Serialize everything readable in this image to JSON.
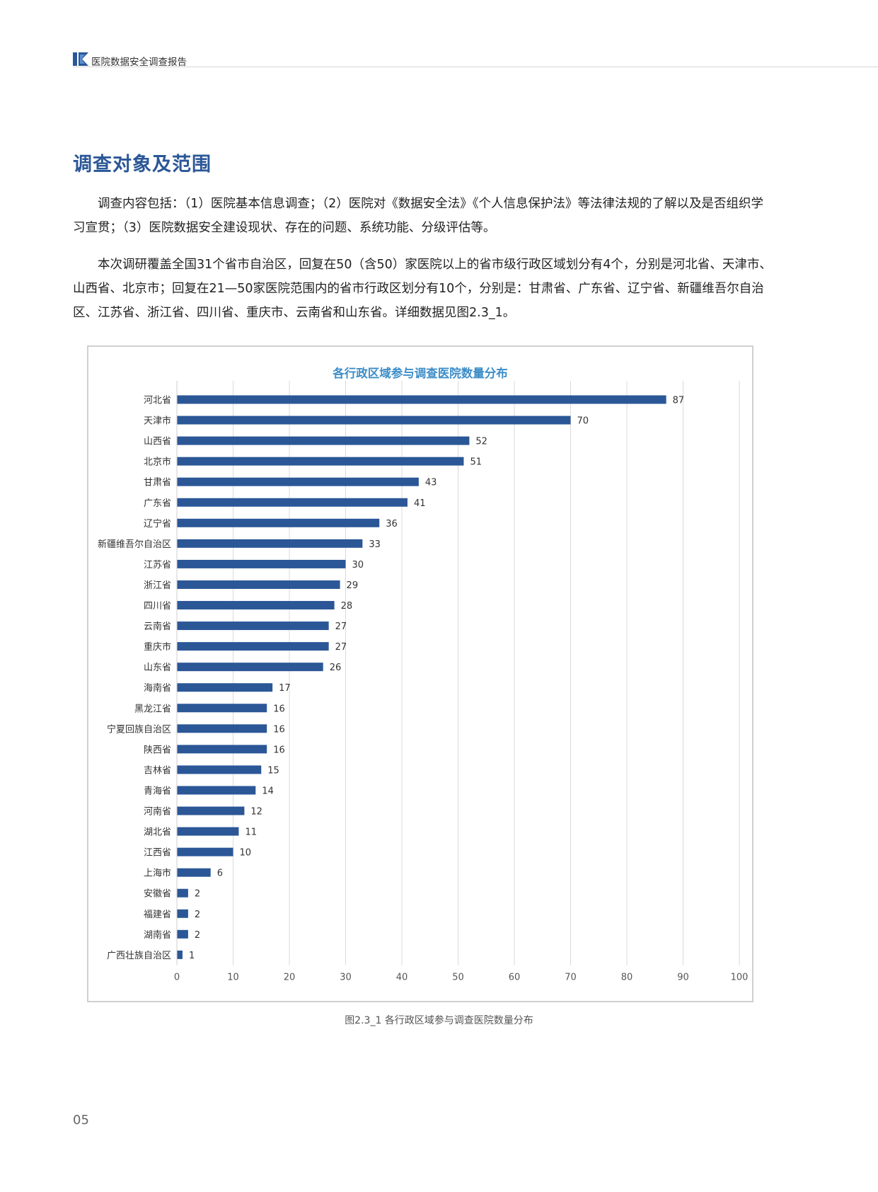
{
  "header": {
    "title": "医院数据安全调查报告"
  },
  "section_title": "调查对象及范围",
  "paragraphs": [
    "调查内容包括：（1）医院基本信息调查；（2）医院对《数据安全法》《个人信息保护法》等法律法规的了解以及是否组织学习宣贯；（3）医院数据安全建设现状、存在的问题、系统功能、分级评估等。",
    "本次调研覆盖全国31个省市自治区，回复在50（含50）家医院以上的省市级行政区域划分有4个，分别是河北省、天津市、山西省、北京市；回复在21—50家医院范围内的省市行政区划分有10个，分别是：甘肃省、广东省、辽宁省、新疆维吾尔自治区、江苏省、浙江省、四川省、重庆市、云南省和山东省。详细数据见图2.3_1。"
  ],
  "chart_data": {
    "type": "bar",
    "orientation": "horizontal",
    "title": "各行政区域参与调查医院数量分布",
    "categories": [
      "河北省",
      "天津市",
      "山西省",
      "北京市",
      "甘肃省",
      "广东省",
      "辽宁省",
      "新疆维吾尔自治区",
      "江苏省",
      "浙江省",
      "四川省",
      "云南省",
      "重庆市",
      "山东省",
      "海南省",
      "黑龙江省",
      "宁夏回族自治区",
      "陕西省",
      "吉林省",
      "青海省",
      "河南省",
      "湖北省",
      "江西省",
      "上海市",
      "安徽省",
      "福建省",
      "湖南省",
      "广西壮族自治区"
    ],
    "values": [
      87,
      70,
      52,
      51,
      43,
      41,
      36,
      33,
      30,
      29,
      28,
      27,
      27,
      26,
      17,
      16,
      16,
      16,
      15,
      14,
      12,
      11,
      10,
      6,
      2,
      2,
      2,
      1
    ],
    "xlim": [
      0,
      100
    ],
    "xticks": [
      0,
      10,
      20,
      30,
      40,
      50,
      60,
      70,
      80,
      90,
      100
    ],
    "grid": true,
    "data_labels": true,
    "bar_color": "#2b5797"
  },
  "caption": "图2.3_1 各行政区域参与调查医院数量分布",
  "page_number": "05"
}
